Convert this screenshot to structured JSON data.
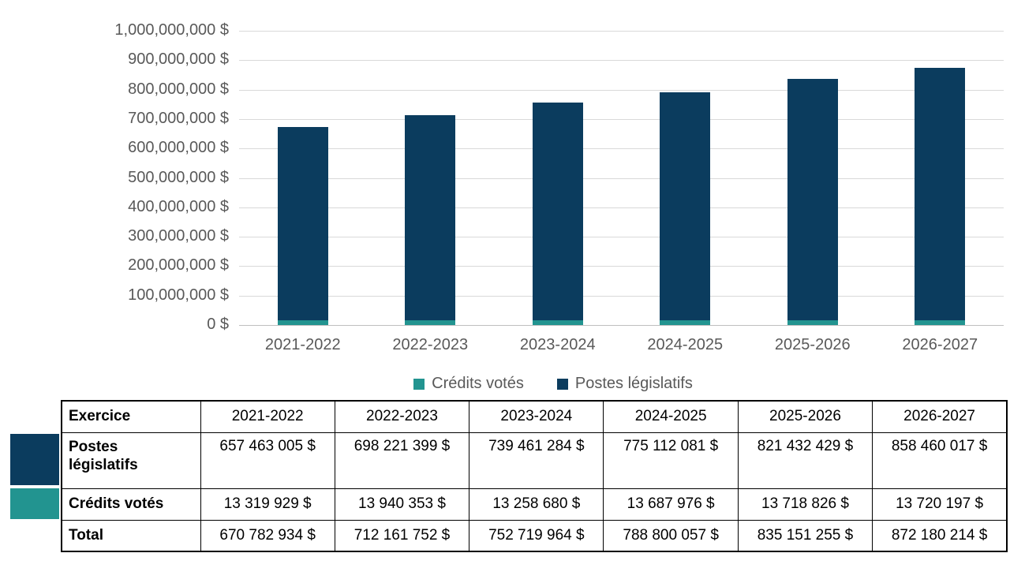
{
  "chart_data": {
    "type": "bar",
    "stacked": true,
    "title": "",
    "xlabel": "",
    "ylabel": "",
    "categories": [
      "2021-2022",
      "2022-2023",
      "2023-2024",
      "2024-2025",
      "2025-2026",
      "2026-2027"
    ],
    "series": [
      {
        "name": "Crédits votés",
        "color": "#229490",
        "values": [
          13319929,
          13940353,
          13258680,
          13687976,
          13718826,
          13720197
        ]
      },
      {
        "name": "Postes législatifs",
        "color": "#0b3c5e",
        "values": [
          657463005,
          698221399,
          739461284,
          775112081,
          821432429,
          858460017
        ]
      }
    ],
    "totals": [
      670782934,
      712161752,
      752719964,
      788800057,
      835151255,
      872180214
    ],
    "ylim": [
      0,
      1000000000
    ],
    "ytick_step": 100000000,
    "yticks": [
      {
        "value": 0,
        "label": "0 $"
      },
      {
        "value": 100000000,
        "label": "100,000,000 $"
      },
      {
        "value": 200000000,
        "label": "200,000,000 $"
      },
      {
        "value": 300000000,
        "label": "300,000,000 $"
      },
      {
        "value": 400000000,
        "label": "400,000,000 $"
      },
      {
        "value": 500000000,
        "label": "500,000,000 $"
      },
      {
        "value": 600000000,
        "label": "600,000,000 $"
      },
      {
        "value": 700000000,
        "label": "700,000,000 $"
      },
      {
        "value": 800000000,
        "label": "800,000,000 $"
      },
      {
        "value": 900000000,
        "label": "900,000,000 $"
      },
      {
        "value": 1000000000,
        "label": "1,000,000,000 $"
      }
    ],
    "grid": true,
    "legend_position": "bottom"
  },
  "colors": {
    "gridline": "#d9d9d9",
    "axis_line": "#bfbfbf",
    "axis_text": "#595959",
    "table_text": "#000000"
  },
  "table": {
    "header": [
      "Exercice",
      "2021-2022",
      "2022-2023",
      "2023-2024",
      "2024-2025",
      "2025-2026",
      "2026-2027"
    ],
    "rows": [
      {
        "label": "Postes législatifs",
        "swatch": "#0b3c5e",
        "values": [
          "657 463 005 $",
          "698 221 399 $",
          "739 461 284 $",
          "775 112 081 $",
          "821 432 429 $",
          "858 460 017 $"
        ]
      },
      {
        "label": "Crédits votés",
        "swatch": "#229490",
        "values": [
          "13 319 929 $",
          "13 940 353 $",
          "13 258 680 $",
          "13 687 976 $",
          "13 718 826 $",
          "13 720 197 $"
        ]
      },
      {
        "label": "Total",
        "swatch": null,
        "values": [
          "670 782 934 $",
          "712 161 752 $",
          "752 719 964 $",
          "788 800 057 $",
          "835 151 255 $",
          "872 180 214 $"
        ]
      }
    ]
  }
}
